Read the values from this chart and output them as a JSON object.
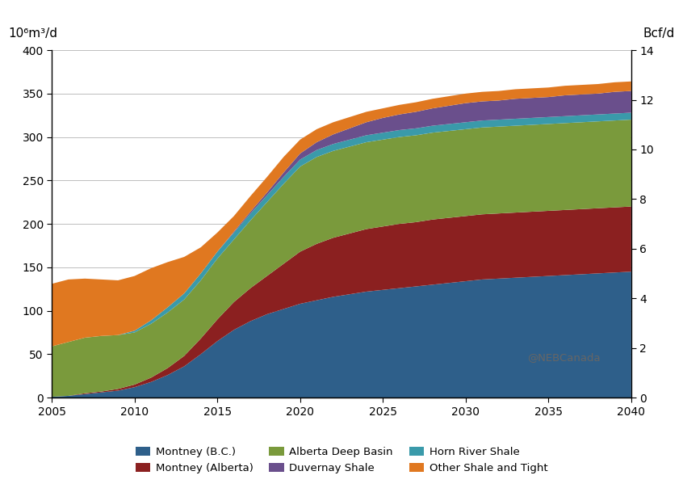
{
  "years": [
    2005,
    2006,
    2007,
    2008,
    2009,
    2010,
    2011,
    2012,
    2013,
    2014,
    2015,
    2016,
    2017,
    2018,
    2019,
    2020,
    2021,
    2022,
    2023,
    2024,
    2025,
    2026,
    2027,
    2028,
    2029,
    2030,
    2031,
    2032,
    2033,
    2034,
    2035,
    2036,
    2037,
    2038,
    2039,
    2040
  ],
  "montney_bc": [
    1,
    2,
    4,
    6,
    8,
    12,
    18,
    26,
    36,
    50,
    65,
    78,
    88,
    96,
    102,
    108,
    112,
    116,
    119,
    122,
    124,
    126,
    128,
    130,
    132,
    134,
    136,
    137,
    138,
    139,
    140,
    141,
    142,
    143,
    144,
    145
  ],
  "montney_alberta": [
    0,
    0,
    1,
    1,
    2,
    3,
    5,
    8,
    12,
    18,
    25,
    32,
    38,
    44,
    52,
    60,
    65,
    68,
    70,
    72,
    73,
    74,
    74,
    75,
    75,
    75,
    75,
    75,
    75,
    75,
    75,
    75,
    75,
    75,
    75,
    75
  ],
  "alberta_deep_basin": [
    58,
    62,
    64,
    64,
    62,
    60,
    62,
    64,
    65,
    67,
    70,
    72,
    78,
    85,
    92,
    98,
    100,
    100,
    100,
    100,
    100,
    100,
    100,
    100,
    100,
    100,
    100,
    100,
    100,
    100,
    100,
    100,
    100,
    100,
    100,
    100
  ],
  "horn_river_shale": [
    0,
    0,
    0,
    0,
    0,
    2,
    4,
    6,
    7,
    8,
    8,
    8,
    8,
    8,
    8,
    8,
    8,
    8,
    8,
    8,
    8,
    8,
    8,
    8,
    8,
    8,
    8,
    8,
    8,
    8,
    8,
    8,
    8,
    8,
    8,
    8
  ],
  "duvernay_shale": [
    0,
    0,
    0,
    0,
    0,
    0,
    0,
    0,
    0,
    0,
    0,
    1,
    2,
    3,
    5,
    7,
    9,
    11,
    13,
    15,
    17,
    18,
    19,
    20,
    21,
    22,
    22,
    22,
    23,
    23,
    23,
    24,
    24,
    24,
    25,
    25
  ],
  "other_shale_tight": [
    72,
    72,
    68,
    65,
    63,
    63,
    60,
    52,
    42,
    30,
    22,
    18,
    18,
    18,
    18,
    16,
    15,
    14,
    13,
    12,
    11,
    11,
    11,
    11,
    11,
    11,
    11,
    11,
    11,
    11,
    11,
    11,
    11,
    11,
    11,
    11
  ],
  "colors": {
    "montney_bc": "#2e5f8a",
    "montney_alberta": "#8b2020",
    "alberta_deep_basin": "#7a9a3c",
    "horn_river_shale": "#3a9aaa",
    "duvernay_shale": "#6a4f8c",
    "other_shale_tight": "#e07820"
  },
  "ylabel_left": "10⁶m³/d",
  "ylabel_right": "Bcf/d",
  "ylim_left": [
    0,
    400
  ],
  "ylim_right": [
    0,
    14
  ],
  "xlim": [
    2005,
    2040
  ],
  "xticks": [
    2005,
    2010,
    2015,
    2020,
    2025,
    2030,
    2035,
    2040
  ],
  "yticks_left": [
    0,
    50,
    100,
    150,
    200,
    250,
    300,
    350,
    400
  ],
  "yticks_right": [
    0,
    2,
    4,
    6,
    8,
    10,
    12,
    14
  ],
  "watermark": "@NEBCanada",
  "legend_entries": [
    {
      "label": "Montney (B.C.)",
      "color": "#2e5f8a"
    },
    {
      "label": "Montney (Alberta)",
      "color": "#8b2020"
    },
    {
      "label": "Alberta Deep Basin",
      "color": "#7a9a3c"
    },
    {
      "label": "Duvernay Shale",
      "color": "#6a4f8c"
    },
    {
      "label": "Horn River Shale",
      "color": "#3a9aaa"
    },
    {
      "label": "Other Shale and Tight",
      "color": "#e07820"
    }
  ]
}
